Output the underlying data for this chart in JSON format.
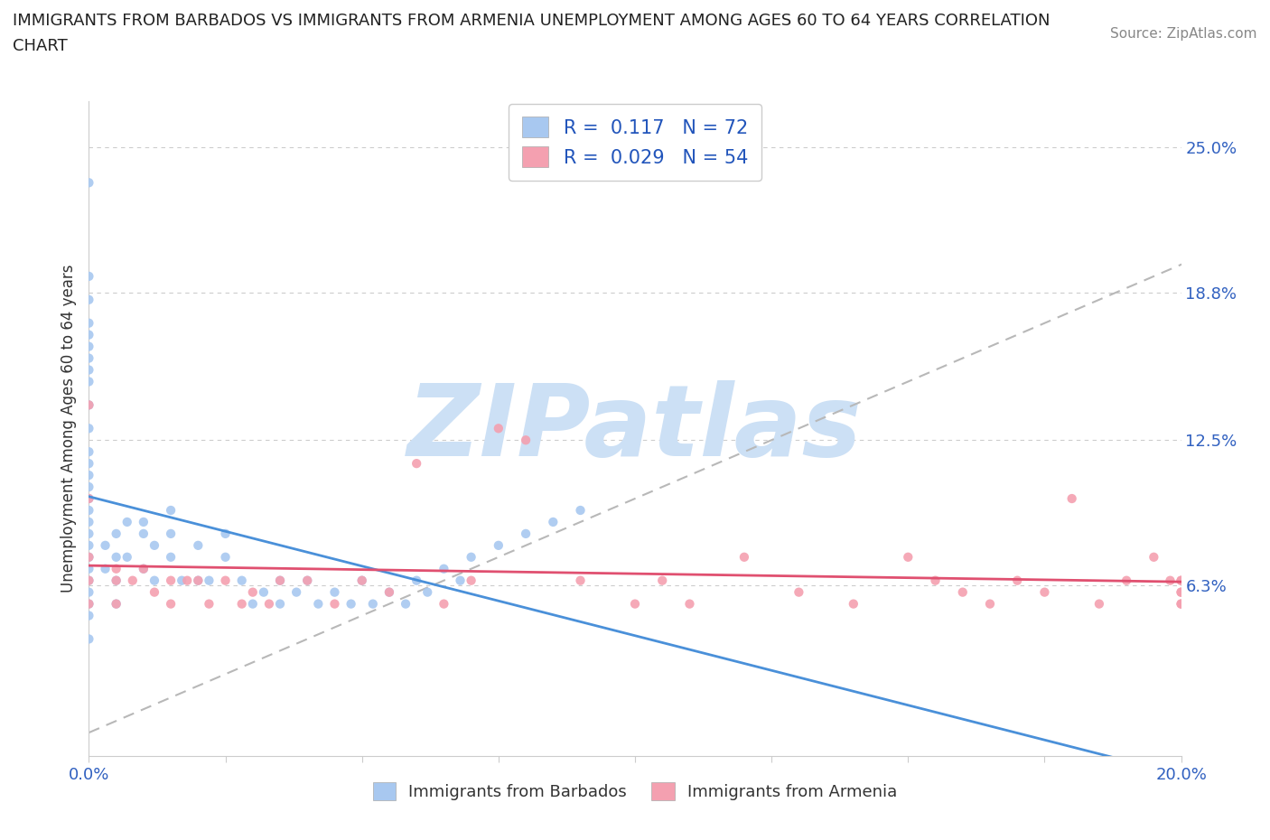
{
  "title_line1": "IMMIGRANTS FROM BARBADOS VS IMMIGRANTS FROM ARMENIA UNEMPLOYMENT AMONG AGES 60 TO 64 YEARS CORRELATION",
  "title_line2": "CHART",
  "source_text": "Source: ZipAtlas.com",
  "ylabel": "Unemployment Among Ages 60 to 64 years",
  "xlim": [
    0.0,
    0.2
  ],
  "ylim": [
    -0.01,
    0.27
  ],
  "ytick_labels_right": [
    "6.3%",
    "12.5%",
    "18.8%",
    "25.0%"
  ],
  "ytick_vals_right": [
    0.063,
    0.125,
    0.188,
    0.25
  ],
  "barbados_R": 0.117,
  "barbados_N": 72,
  "armenia_R": 0.029,
  "armenia_N": 54,
  "barbados_color": "#a8c8f0",
  "armenia_color": "#f4a0b0",
  "barbados_line_color": "#4a90d9",
  "armenia_line_color": "#e05070",
  "diagonal_line_color": "#b8b8b8",
  "watermark_text": "ZIPatlas",
  "watermark_color": "#cce0f5",
  "background_color": "#ffffff",
  "barbados_x": [
    0.0,
    0.0,
    0.0,
    0.0,
    0.0,
    0.0,
    0.0,
    0.0,
    0.0,
    0.0,
    0.0,
    0.0,
    0.0,
    0.0,
    0.0,
    0.0,
    0.0,
    0.0,
    0.0,
    0.0,
    0.0,
    0.0,
    0.0,
    0.0,
    0.0,
    0.0,
    0.0,
    0.003,
    0.003,
    0.005,
    0.005,
    0.005,
    0.005,
    0.007,
    0.007,
    0.01,
    0.01,
    0.01,
    0.012,
    0.012,
    0.015,
    0.015,
    0.015,
    0.017,
    0.02,
    0.02,
    0.022,
    0.025,
    0.025,
    0.028,
    0.03,
    0.032,
    0.035,
    0.035,
    0.038,
    0.04,
    0.042,
    0.045,
    0.048,
    0.05,
    0.052,
    0.055,
    0.058,
    0.06,
    0.062,
    0.065,
    0.068,
    0.07,
    0.075,
    0.08,
    0.085,
    0.09
  ],
  "barbados_y": [
    0.235,
    0.195,
    0.185,
    0.175,
    0.17,
    0.165,
    0.16,
    0.155,
    0.15,
    0.14,
    0.13,
    0.12,
    0.115,
    0.11,
    0.105,
    0.1,
    0.095,
    0.09,
    0.085,
    0.08,
    0.075,
    0.07,
    0.065,
    0.06,
    0.055,
    0.05,
    0.04,
    0.08,
    0.07,
    0.085,
    0.075,
    0.065,
    0.055,
    0.09,
    0.075,
    0.09,
    0.085,
    0.07,
    0.08,
    0.065,
    0.095,
    0.085,
    0.075,
    0.065,
    0.08,
    0.065,
    0.065,
    0.085,
    0.075,
    0.065,
    0.055,
    0.06,
    0.065,
    0.055,
    0.06,
    0.065,
    0.055,
    0.06,
    0.055,
    0.065,
    0.055,
    0.06,
    0.055,
    0.065,
    0.06,
    0.07,
    0.065,
    0.075,
    0.08,
    0.085,
    0.09,
    0.095
  ],
  "armenia_x": [
    0.0,
    0.0,
    0.0,
    0.0,
    0.0,
    0.005,
    0.005,
    0.005,
    0.008,
    0.01,
    0.012,
    0.015,
    0.015,
    0.018,
    0.02,
    0.022,
    0.025,
    0.028,
    0.03,
    0.033,
    0.035,
    0.04,
    0.045,
    0.05,
    0.055,
    0.06,
    0.065,
    0.07,
    0.075,
    0.08,
    0.09,
    0.1,
    0.105,
    0.11,
    0.12,
    0.13,
    0.14,
    0.15,
    0.155,
    0.16,
    0.165,
    0.17,
    0.175,
    0.18,
    0.185,
    0.19,
    0.195,
    0.198,
    0.2,
    0.2,
    0.2,
    0.2,
    0.2,
    0.2
  ],
  "armenia_y": [
    0.14,
    0.1,
    0.075,
    0.065,
    0.055,
    0.07,
    0.065,
    0.055,
    0.065,
    0.07,
    0.06,
    0.065,
    0.055,
    0.065,
    0.065,
    0.055,
    0.065,
    0.055,
    0.06,
    0.055,
    0.065,
    0.065,
    0.055,
    0.065,
    0.06,
    0.115,
    0.055,
    0.065,
    0.13,
    0.125,
    0.065,
    0.055,
    0.065,
    0.055,
    0.075,
    0.06,
    0.055,
    0.075,
    0.065,
    0.06,
    0.055,
    0.065,
    0.06,
    0.1,
    0.055,
    0.065,
    0.075,
    0.065,
    0.065,
    0.06,
    0.055,
    0.065,
    0.06,
    0.055
  ]
}
